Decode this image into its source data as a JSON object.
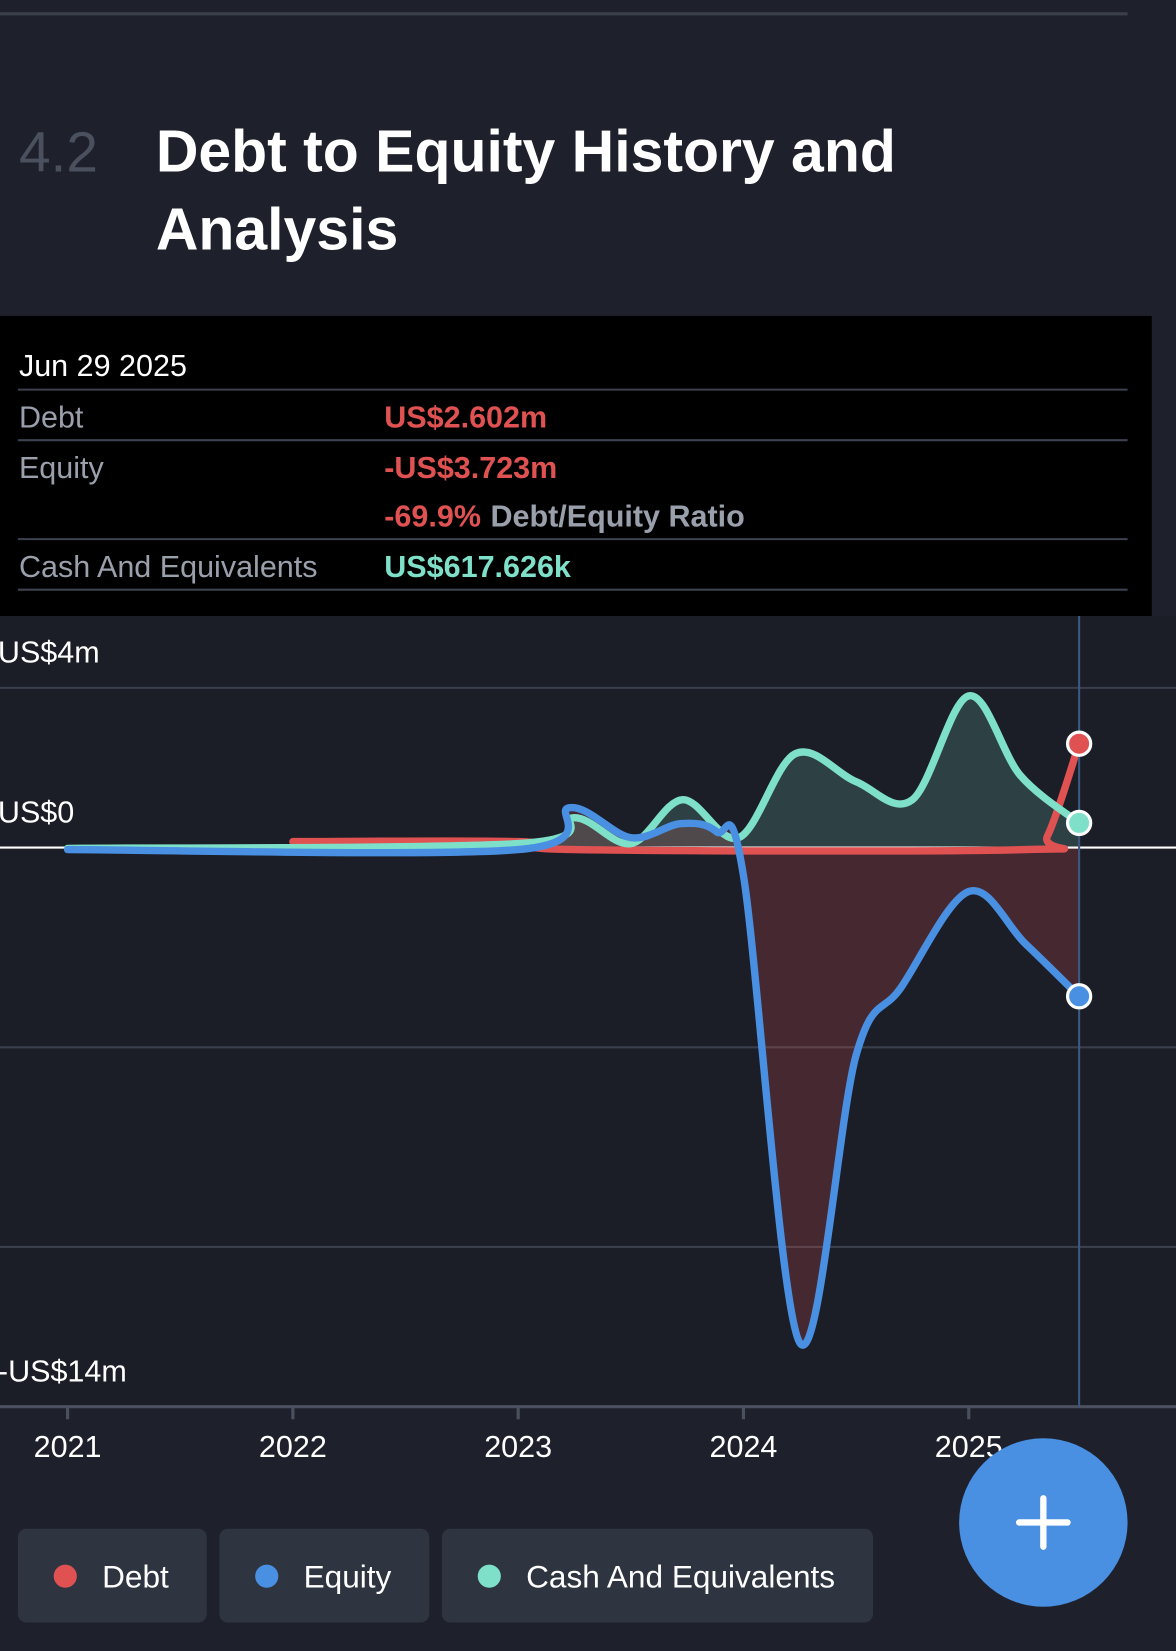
{
  "header": {
    "number": "4.2",
    "title_lines": [
      "Debt to Equity History and",
      "Analysis"
    ]
  },
  "tooltip": {
    "date": "Jun 29 2025",
    "rows": [
      {
        "label": "Debt",
        "value": "US$2.602m"
      },
      {
        "label": "Equity",
        "value": "-US$3.723m"
      },
      {
        "value": "-69.9%",
        "note": "Debt/Equity Ratio"
      },
      {
        "label": "Cash And Equivalents",
        "value": "US$617.626k"
      }
    ]
  },
  "chart_data": {
    "type": "line",
    "xlim": [
      2020.7,
      2025.92
    ],
    "xticks": [
      2021,
      2022,
      2023,
      2024,
      2025
    ],
    "ylim": [
      -14,
      5.8
    ],
    "yticks": [
      {
        "value": 4,
        "label": "US$4m"
      },
      {
        "value": 0,
        "label": "US$0"
      },
      {
        "value": -14,
        "label": "-US$14m"
      }
    ],
    "ygrid": [
      4,
      -5,
      -10
    ],
    "series": [
      {
        "name": "Debt",
        "color": "#e05252",
        "x": [
          2022,
          2023,
          2023.25,
          2025.25,
          2025.35,
          2025.49
        ],
        "values": [
          0.15,
          0.15,
          -0.05,
          -0.05,
          0.3,
          2.602
        ]
      },
      {
        "name": "Equity",
        "color": "#4a90e2",
        "x": [
          2021,
          2023,
          2023.23,
          2023.5,
          2023.72,
          2023.88,
          2024.0,
          2024.25,
          2024.5,
          2024.7,
          2025,
          2025.25,
          2025.49
        ],
        "values": [
          -0.05,
          -0.05,
          1.0,
          0.25,
          0.6,
          0.4,
          -0.7,
          -12.4,
          -5.2,
          -3.5,
          -1.1,
          -2.4,
          -3.723
        ]
      },
      {
        "name": "Cash And Equivalents",
        "color": "#7ee0c8",
        "x": [
          2021,
          2023,
          2023.25,
          2023.5,
          2023.73,
          2023.98,
          2024.23,
          2024.5,
          2024.75,
          2025,
          2025.23,
          2025.49
        ],
        "values": [
          -0.02,
          0.1,
          0.75,
          0.1,
          1.2,
          0.25,
          2.35,
          1.65,
          1.2,
          3.8,
          1.8,
          0.618
        ]
      }
    ]
  }
}
